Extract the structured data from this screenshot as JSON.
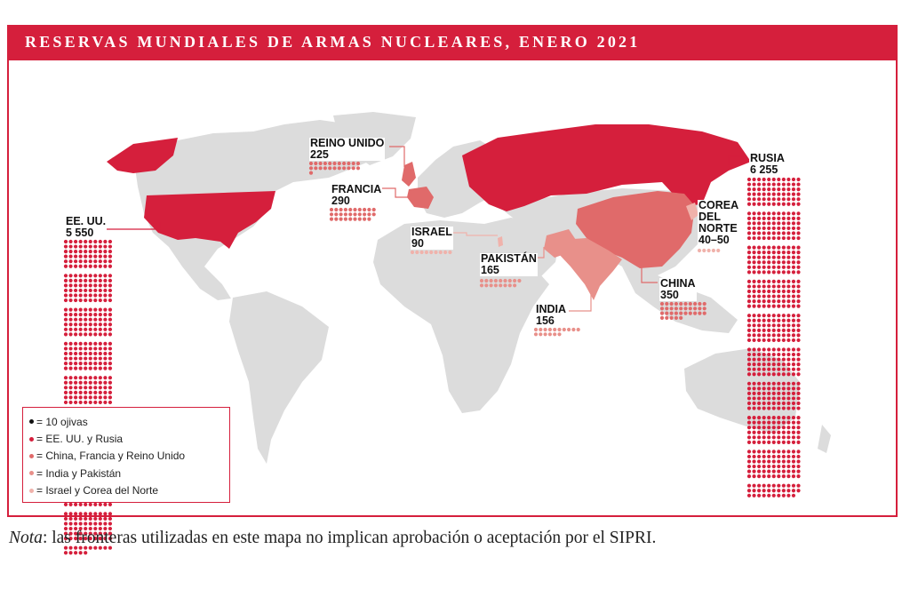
{
  "title": "RESERVAS MUNDIALES DE ARMAS NUCLEARES, ENERO 2021",
  "note": {
    "label": "Nota",
    "text": ": las fronteras utilizadas en este mapa no implican aprobación o aceptación por el SIPRI."
  },
  "legend": {
    "items": [
      {
        "color": "#111111",
        "label": "= 10 ojivas"
      },
      {
        "color": "#d51f3c",
        "label": "= EE. UU. y Rusia"
      },
      {
        "color": "#e06a6a",
        "label": "= China, Francia y Reino Unido"
      },
      {
        "color": "#e8908a",
        "label": "= India y Pakistán"
      },
      {
        "color": "#f0b2ab",
        "label": "= Israel y Corea del Norte"
      }
    ]
  },
  "countries": [
    {
      "key": "usa",
      "name": "EE. UU.",
      "value": "5 550",
      "warheads": 5550,
      "color": "#d51f3c"
    },
    {
      "key": "russia",
      "name": "RUSIA",
      "value": "6 255",
      "warheads": 6255,
      "color": "#d51f3c"
    },
    {
      "key": "uk",
      "name": "REINO UNIDO",
      "value": "225",
      "warheads": 225,
      "color": "#e06a6a"
    },
    {
      "key": "france",
      "name": "FRANCIA",
      "value": "290",
      "warheads": 290,
      "color": "#e06a6a"
    },
    {
      "key": "china",
      "name": "CHINA",
      "value": "350",
      "warheads": 350,
      "color": "#e06a6a"
    },
    {
      "key": "india",
      "name": "INDIA",
      "value": "156",
      "warheads": 156,
      "color": "#e8908a"
    },
    {
      "key": "pakistan",
      "name": "PAKISTÁN",
      "value": "165",
      "warheads": 165,
      "color": "#e8908a"
    },
    {
      "key": "israel",
      "name": "ISRAEL",
      "value": "90",
      "warheads": 90,
      "color": "#f0b2ab"
    },
    {
      "key": "nkorea",
      "name": "COREA\nDEL\nNORTE",
      "value": "40–50",
      "warheads": 45,
      "color": "#f0b2ab"
    }
  ],
  "colors": {
    "accent": "#d51f3c",
    "land": "#dcdcdc",
    "tier_china_france_uk": "#e06a6a",
    "tier_india_pakistan": "#e8908a",
    "tier_israel_nk": "#f0b2ab"
  }
}
